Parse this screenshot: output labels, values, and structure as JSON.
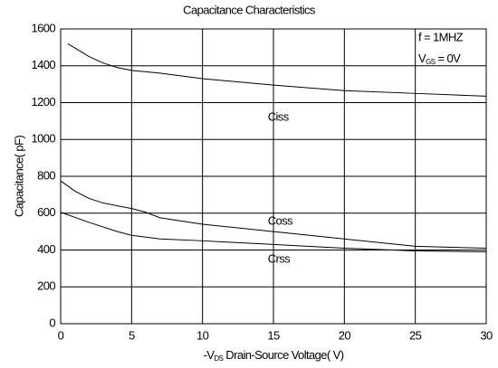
{
  "chart_data": {
    "type": "line",
    "title": "Capacitance Characteristics",
    "xlabel": {
      "prefix": "-V",
      "sub": "DS",
      "rest": " Drain-Source Voltage( V)"
    },
    "ylabel": "Capacitance( pF)",
    "annotations": [
      {
        "text": "f = 1MHZ"
      },
      {
        "prefix": "V",
        "sub": "GS",
        "rest": " = 0V"
      }
    ],
    "xlim": [
      0,
      30
    ],
    "xticks": [
      0,
      5,
      10,
      15,
      20,
      25,
      30
    ],
    "ylim": [
      0,
      1600
    ],
    "yticks": [
      0,
      200,
      400,
      600,
      800,
      1000,
      1200,
      1400,
      1600
    ],
    "grid": true,
    "series": [
      {
        "name": "Ciss",
        "color": "#000000",
        "x": [
          0.5,
          2,
          3,
          4,
          5,
          7,
          10,
          15,
          20,
          25,
          30
        ],
        "values": [
          1520,
          1450,
          1415,
          1390,
          1375,
          1360,
          1330,
          1295,
          1265,
          1250,
          1235
        ]
      },
      {
        "name": "Coss",
        "color": "#000000",
        "x": [
          0,
          1,
          2,
          3,
          5,
          6,
          7,
          10,
          15,
          20,
          25,
          30
        ],
        "values": [
          775,
          720,
          680,
          655,
          625,
          605,
          575,
          540,
          500,
          460,
          420,
          410
        ]
      },
      {
        "name": "Crss",
        "color": "#000000",
        "x": [
          0,
          2,
          4,
          5,
          7,
          10,
          15,
          20,
          25,
          30
        ],
        "values": [
          605,
          550,
          500,
          480,
          460,
          450,
          430,
          410,
          395,
          390
        ]
      }
    ]
  }
}
